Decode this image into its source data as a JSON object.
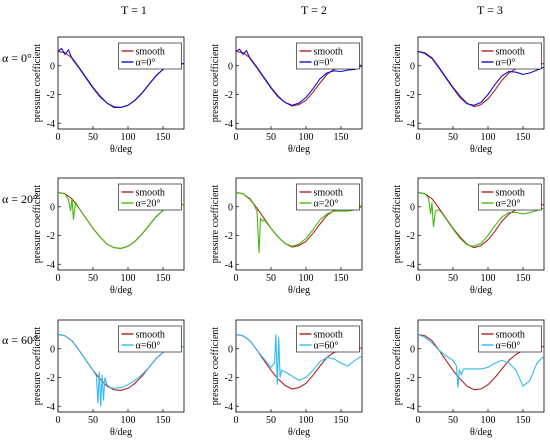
{
  "figure": {
    "column_headers": [
      "T = 1",
      "T = 2",
      "T = 3"
    ],
    "row_headers": [
      "α = 0°",
      "α = 20°",
      "α = 60°"
    ]
  },
  "colors": {
    "smooth": "#b22222",
    "alpha0": "#1010cc",
    "alpha20": "#44bb11",
    "alpha60": "#33bbee"
  },
  "chart_data": [
    {
      "type": "line",
      "row": 0,
      "col": 0,
      "xlabel": "θ/deg",
      "ylabel": "pressure coefficient",
      "xlim": [
        0,
        180
      ],
      "ylim": [
        -4.4,
        2
      ],
      "xticks": [
        0,
        50,
        100,
        150
      ],
      "yticks": [
        -4,
        -2,
        0
      ],
      "series": [
        {
          "name": "smooth",
          "color": "smooth",
          "x": [
            0,
            10,
            20,
            30,
            40,
            50,
            60,
            70,
            80,
            90,
            100,
            110,
            120,
            130,
            140,
            150,
            160,
            170,
            180
          ],
          "y": [
            1.0,
            0.9,
            0.55,
            -0.1,
            -0.8,
            -1.5,
            -2.1,
            -2.6,
            -2.85,
            -2.9,
            -2.75,
            -2.4,
            -1.9,
            -1.3,
            -0.7,
            -0.25,
            0.0,
            0.1,
            0.15
          ]
        },
        {
          "name": "α=0°",
          "color": "alpha0",
          "x": [
            0,
            5,
            10,
            15,
            20,
            30,
            40,
            50,
            60,
            70,
            80,
            90,
            100,
            110,
            120,
            130,
            140,
            150,
            160,
            170,
            180
          ],
          "y": [
            1.0,
            1.2,
            0.8,
            1.1,
            0.5,
            -0.15,
            -0.85,
            -1.55,
            -2.15,
            -2.6,
            -2.9,
            -2.9,
            -2.75,
            -2.4,
            -1.9,
            -1.3,
            -0.7,
            -0.25,
            0.0,
            0.1,
            0.15
          ]
        }
      ]
    },
    {
      "type": "line",
      "row": 0,
      "col": 1,
      "xlabel": "θ/deg",
      "ylabel": "pressure coefficient",
      "xlim": [
        0,
        180
      ],
      "ylim": [
        -4.4,
        2
      ],
      "xticks": [
        0,
        50,
        100,
        150
      ],
      "yticks": [
        -4,
        -2,
        0
      ],
      "series": [
        {
          "name": "smooth",
          "color": "smooth",
          "x": [
            0,
            10,
            20,
            30,
            40,
            50,
            60,
            70,
            80,
            90,
            100,
            110,
            120,
            130,
            140,
            150,
            160,
            170,
            180
          ],
          "y": [
            1.0,
            0.9,
            0.55,
            -0.1,
            -0.8,
            -1.5,
            -2.1,
            -2.55,
            -2.8,
            -2.7,
            -2.4,
            -1.85,
            -1.2,
            -0.6,
            -0.25,
            -0.1,
            -0.05,
            0.0,
            0.05
          ]
        },
        {
          "name": "α=0°",
          "color": "alpha0",
          "x": [
            0,
            5,
            10,
            15,
            20,
            30,
            40,
            50,
            60,
            70,
            80,
            90,
            100,
            110,
            120,
            130,
            140,
            150,
            160,
            170,
            180
          ],
          "y": [
            1.0,
            1.15,
            0.8,
            1.05,
            0.5,
            -0.15,
            -0.85,
            -1.55,
            -2.15,
            -2.55,
            -2.75,
            -2.6,
            -2.2,
            -1.6,
            -0.9,
            -0.5,
            -0.35,
            -0.4,
            -0.3,
            -0.25,
            0.0
          ]
        }
      ]
    },
    {
      "type": "line",
      "row": 0,
      "col": 2,
      "xlabel": "θ/deg",
      "ylabel": "pressure coefficient",
      "xlim": [
        0,
        180
      ],
      "ylim": [
        -4.4,
        2
      ],
      "xticks": [
        0,
        50,
        100,
        150
      ],
      "yticks": [
        -4,
        -2,
        0
      ],
      "series": [
        {
          "name": "smooth",
          "color": "smooth",
          "x": [
            0,
            10,
            20,
            30,
            40,
            50,
            60,
            70,
            80,
            90,
            100,
            110,
            120,
            130,
            140,
            150,
            160,
            170,
            180
          ],
          "y": [
            1.0,
            0.9,
            0.55,
            -0.1,
            -0.8,
            -1.5,
            -2.1,
            -2.6,
            -2.85,
            -2.7,
            -2.3,
            -1.7,
            -1.0,
            -0.5,
            -0.2,
            -0.05,
            0.05,
            0.1,
            0.15
          ]
        },
        {
          "name": "α=0°",
          "color": "alpha0",
          "x": [
            0,
            10,
            20,
            30,
            40,
            50,
            60,
            70,
            80,
            90,
            100,
            110,
            120,
            130,
            140,
            150,
            160,
            170,
            180
          ],
          "y": [
            1.0,
            0.85,
            0.5,
            -0.15,
            -0.85,
            -1.55,
            -2.2,
            -2.65,
            -2.75,
            -2.55,
            -2.0,
            -1.3,
            -0.7,
            -0.4,
            -0.45,
            -0.6,
            -0.5,
            -0.3,
            -0.1
          ]
        }
      ]
    },
    {
      "type": "line",
      "row": 1,
      "col": 0,
      "xlabel": "θ/deg",
      "ylabel": "pressure coefficient",
      "xlim": [
        0,
        180
      ],
      "ylim": [
        -4.4,
        2
      ],
      "xticks": [
        0,
        50,
        100,
        150
      ],
      "yticks": [
        -4,
        -2,
        0
      ],
      "series": [
        {
          "name": "smooth",
          "color": "smooth",
          "x": [
            0,
            10,
            20,
            30,
            40,
            50,
            60,
            70,
            80,
            90,
            100,
            110,
            120,
            130,
            140,
            150,
            160,
            170,
            180
          ],
          "y": [
            1.0,
            0.9,
            0.55,
            -0.1,
            -0.8,
            -1.5,
            -2.1,
            -2.6,
            -2.85,
            -2.9,
            -2.75,
            -2.4,
            -1.9,
            -1.3,
            -0.7,
            -0.25,
            0.0,
            0.1,
            0.15
          ]
        },
        {
          "name": "α=20°",
          "color": "alpha20",
          "x": [
            0,
            10,
            15,
            18,
            20,
            22,
            25,
            30,
            35,
            40,
            50,
            60,
            70,
            80,
            90,
            100,
            110,
            120,
            130,
            140,
            150,
            160,
            170,
            180
          ],
          "y": [
            1.0,
            0.9,
            0.5,
            -0.3,
            0.6,
            -0.9,
            0.3,
            -0.1,
            -0.45,
            -0.8,
            -1.5,
            -2.1,
            -2.6,
            -2.85,
            -2.9,
            -2.75,
            -2.4,
            -1.9,
            -1.3,
            -0.7,
            -0.25,
            0.0,
            0.1,
            0.15
          ]
        }
      ]
    },
    {
      "type": "line",
      "row": 1,
      "col": 1,
      "xlabel": "θ/deg",
      "ylabel": "pressure coefficient",
      "xlim": [
        0,
        180
      ],
      "ylim": [
        -4.4,
        2
      ],
      "xticks": [
        0,
        50,
        100,
        150
      ],
      "yticks": [
        -4,
        -2,
        0
      ],
      "series": [
        {
          "name": "smooth",
          "color": "smooth",
          "x": [
            0,
            10,
            20,
            30,
            40,
            50,
            60,
            70,
            80,
            90,
            100,
            110,
            120,
            130,
            140,
            150,
            160,
            170,
            180
          ],
          "y": [
            1.0,
            0.9,
            0.55,
            -0.1,
            -0.8,
            -1.5,
            -2.1,
            -2.55,
            -2.8,
            -2.7,
            -2.4,
            -1.85,
            -1.2,
            -0.6,
            -0.25,
            -0.1,
            -0.05,
            0.0,
            0.05
          ]
        },
        {
          "name": "α=20°",
          "color": "alpha20",
          "x": [
            0,
            10,
            20,
            25,
            30,
            33,
            35,
            38,
            40,
            50,
            60,
            70,
            80,
            90,
            100,
            110,
            120,
            130,
            140,
            150,
            160,
            170,
            180
          ],
          "y": [
            1.0,
            0.9,
            0.5,
            0.2,
            -0.3,
            -3.2,
            -0.8,
            -1.0,
            -0.9,
            -1.5,
            -2.1,
            -2.55,
            -2.75,
            -2.6,
            -2.2,
            -1.6,
            -0.9,
            -0.5,
            -0.3,
            -0.3,
            -0.3,
            -0.2,
            0.0
          ]
        }
      ]
    },
    {
      "type": "line",
      "row": 1,
      "col": 2,
      "xlabel": "θ/deg",
      "ylabel": "pressure coefficient",
      "xlim": [
        0,
        180
      ],
      "ylim": [
        -4.4,
        2
      ],
      "xticks": [
        0,
        50,
        100,
        150
      ],
      "yticks": [
        -4,
        -2,
        0
      ],
      "series": [
        {
          "name": "smooth",
          "color": "smooth",
          "x": [
            0,
            10,
            20,
            30,
            40,
            50,
            60,
            70,
            80,
            90,
            100,
            110,
            120,
            130,
            140,
            150,
            160,
            170,
            180
          ],
          "y": [
            1.0,
            0.9,
            0.55,
            -0.1,
            -0.8,
            -1.5,
            -2.1,
            -2.6,
            -2.85,
            -2.7,
            -2.3,
            -1.7,
            -1.0,
            -0.5,
            -0.2,
            -0.05,
            0.05,
            0.1,
            0.15
          ]
        },
        {
          "name": "α=20°",
          "color": "alpha20",
          "x": [
            0,
            10,
            15,
            18,
            20,
            22,
            25,
            30,
            35,
            40,
            50,
            60,
            70,
            80,
            90,
            100,
            110,
            120,
            130,
            140,
            150,
            160,
            170,
            180
          ],
          "y": [
            1.0,
            0.9,
            0.6,
            -0.5,
            0.3,
            -1.4,
            -0.3,
            -0.2,
            -0.5,
            -0.85,
            -1.55,
            -2.2,
            -2.65,
            -2.75,
            -2.55,
            -2.0,
            -1.3,
            -0.7,
            -0.4,
            -0.4,
            -0.5,
            -0.4,
            -0.25,
            -0.1
          ]
        }
      ]
    },
    {
      "type": "line",
      "row": 2,
      "col": 0,
      "xlabel": "θ/deg",
      "ylabel": "pressure coefficient",
      "xlim": [
        0,
        180
      ],
      "ylim": [
        -4.4,
        2
      ],
      "xticks": [
        0,
        50,
        100,
        150
      ],
      "yticks": [
        -4,
        -2,
        0
      ],
      "series": [
        {
          "name": "smooth",
          "color": "smooth",
          "x": [
            0,
            10,
            20,
            30,
            40,
            50,
            60,
            70,
            80,
            90,
            100,
            110,
            120,
            130,
            140,
            150,
            160,
            170,
            180
          ],
          "y": [
            1.0,
            0.9,
            0.55,
            -0.1,
            -0.8,
            -1.5,
            -2.1,
            -2.6,
            -2.85,
            -2.9,
            -2.75,
            -2.4,
            -1.9,
            -1.3,
            -0.7,
            -0.25,
            0.0,
            0.1,
            0.15
          ]
        },
        {
          "name": "α=60°",
          "color": "alpha60",
          "x": [
            0,
            10,
            20,
            30,
            40,
            50,
            55,
            57,
            59,
            61,
            63,
            65,
            67,
            70,
            75,
            80,
            90,
            100,
            110,
            120,
            130,
            140,
            150,
            160,
            170,
            180
          ],
          "y": [
            1.0,
            0.9,
            0.55,
            -0.1,
            -0.8,
            -1.5,
            -1.9,
            -3.8,
            -1.6,
            -4.0,
            -1.8,
            -3.6,
            -2.0,
            -2.5,
            -2.7,
            -2.75,
            -2.7,
            -2.5,
            -2.2,
            -1.8,
            -1.3,
            -0.7,
            -0.25,
            0.0,
            0.1,
            0.15
          ]
        }
      ]
    },
    {
      "type": "line",
      "row": 2,
      "col": 1,
      "xlabel": "θ/deg",
      "ylabel": "pressure coefficient",
      "xlim": [
        0,
        180
      ],
      "ylim": [
        -4.4,
        2
      ],
      "xticks": [
        0,
        50,
        100,
        150
      ],
      "yticks": [
        -4,
        -2,
        0
      ],
      "series": [
        {
          "name": "smooth",
          "color": "smooth",
          "x": [
            0,
            10,
            20,
            30,
            40,
            50,
            60,
            70,
            80,
            90,
            100,
            110,
            120,
            130,
            140,
            150,
            160,
            170,
            180
          ],
          "y": [
            1.0,
            0.9,
            0.55,
            -0.1,
            -0.8,
            -1.5,
            -2.1,
            -2.55,
            -2.8,
            -2.7,
            -2.4,
            -1.85,
            -1.2,
            -0.6,
            -0.25,
            -0.1,
            -0.05,
            0.0,
            0.05
          ]
        },
        {
          "name": "α=60°",
          "color": "alpha60",
          "x": [
            0,
            10,
            20,
            30,
            40,
            50,
            55,
            57,
            59,
            61,
            63,
            65,
            70,
            80,
            90,
            100,
            110,
            120,
            130,
            140,
            150,
            160,
            170,
            180
          ],
          "y": [
            1.0,
            0.9,
            0.55,
            -0.1,
            -0.7,
            -1.3,
            -1.0,
            1.0,
            -2.5,
            0.8,
            -2.0,
            -1.5,
            -1.6,
            -1.9,
            -2.2,
            -2.0,
            -1.5,
            -0.9,
            -0.6,
            -0.7,
            -1.0,
            -1.2,
            -0.8,
            -0.5
          ]
        }
      ]
    },
    {
      "type": "line",
      "row": 2,
      "col": 2,
      "xlabel": "θ/deg",
      "ylabel": "pressure coefficient",
      "xlim": [
        0,
        180
      ],
      "ylim": [
        -4.4,
        2
      ],
      "xticks": [
        0,
        50,
        100,
        150
      ],
      "yticks": [
        -4,
        -2,
        0
      ],
      "series": [
        {
          "name": "smooth",
          "color": "smooth",
          "x": [
            0,
            10,
            20,
            30,
            40,
            50,
            60,
            70,
            80,
            90,
            100,
            110,
            120,
            130,
            140,
            150,
            160,
            170,
            180
          ],
          "y": [
            1.0,
            0.9,
            0.55,
            -0.1,
            -0.8,
            -1.5,
            -2.1,
            -2.6,
            -2.85,
            -2.8,
            -2.5,
            -2.0,
            -1.4,
            -0.8,
            -0.4,
            -0.1,
            0.05,
            0.1,
            0.15
          ]
        },
        {
          "name": "α=60°",
          "color": "alpha60",
          "x": [
            0,
            10,
            20,
            30,
            40,
            50,
            55,
            57,
            59,
            62,
            65,
            70,
            80,
            90,
            100,
            110,
            120,
            130,
            140,
            150,
            160,
            170,
            180
          ],
          "y": [
            1.0,
            0.8,
            0.4,
            -0.1,
            -0.5,
            -0.8,
            -1.2,
            -2.7,
            -1.5,
            -1.8,
            -1.4,
            -1.4,
            -1.4,
            -1.4,
            -1.3,
            -1.0,
            -0.8,
            -1.0,
            -1.5,
            -2.6,
            -2.2,
            -1.0,
            -0.5
          ]
        }
      ]
    }
  ]
}
